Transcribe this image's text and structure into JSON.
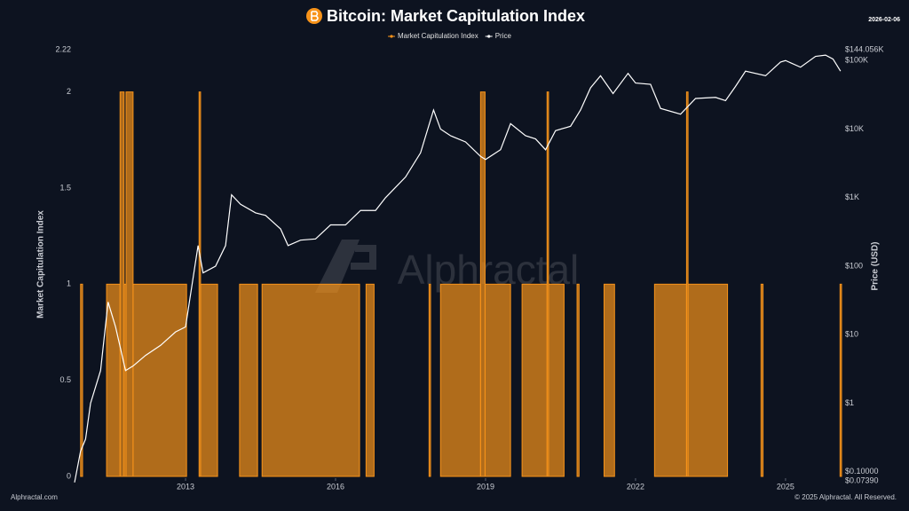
{
  "chart_data": {
    "type": "line",
    "title": "Bitcoin: Market Capitulation Index",
    "date": "2026-02-06",
    "legend": "top",
    "watermark": "Alphractal",
    "footer_left": "Alphractal.com",
    "footer_right": "© 2025 Alphractal. All Reserved.",
    "y_label": "Market Capitulation Index",
    "y2_label": "Price (USD)",
    "y2_scale": "log",
    "xlim": [
      2010.78,
      2026.12
    ],
    "xticks": [
      2013,
      2016,
      2019,
      2022,
      2025
    ],
    "ylim": [
      0,
      2.22
    ],
    "yticks": [
      0,
      0.5,
      1,
      1.5,
      2,
      2.22
    ],
    "y2lim": [
      0.0739,
      144056
    ],
    "y2ticks": [
      {
        "value": 0.0739,
        "label": "$0.07390"
      },
      {
        "value": 0.1,
        "label": "$0.10000"
      },
      {
        "value": 1,
        "label": "$1"
      },
      {
        "value": 10,
        "label": "$10"
      },
      {
        "value": 100,
        "label": "$100"
      },
      {
        "value": 1000,
        "label": "$1K"
      },
      {
        "value": 10000,
        "label": "$10K"
      },
      {
        "value": 100000,
        "label": "$100K"
      },
      {
        "value": 144056,
        "label": "$144.056K"
      }
    ],
    "series": [
      {
        "name": "Market Capitulation Index",
        "color": "#f7931a",
        "type": "step-area",
        "x": [
          2010.78,
          2010.9,
          2010.94,
          2011.42,
          2011.69,
          2011.77,
          2011.81,
          2011.95,
          2013.02,
          2013.27,
          2013.3,
          2013.64,
          2014.08,
          2014.44,
          2014.53,
          2016.48,
          2016.61,
          2016.77,
          2017.87,
          2017.9,
          2018.1,
          2018.9,
          2018.99,
          2019.5,
          2019.73,
          2020.23,
          2020.26,
          2020.57,
          2020.83,
          2020.87,
          2021.37,
          2021.58,
          2022.38,
          2023.02,
          2023.05,
          2023.84,
          2024.51,
          2024.55,
          2026.09
        ],
        "values": [
          0,
          1,
          0,
          1,
          2,
          1,
          2,
          1,
          0,
          2,
          1,
          0,
          1,
          0,
          1,
          0,
          1,
          0,
          1,
          0,
          1,
          2,
          1,
          0,
          1,
          2,
          1,
          0,
          1,
          0,
          1,
          0,
          1,
          2,
          1,
          0,
          1,
          0,
          1
        ]
      },
      {
        "name": "Price",
        "color": "#ffffff",
        "type": "line",
        "axis": "y2",
        "x": [
          2010.78,
          2010.9,
          2011.0,
          2011.1,
          2011.3,
          2011.45,
          2011.6,
          2011.8,
          2011.95,
          2012.2,
          2012.5,
          2012.8,
          2013.0,
          2013.25,
          2013.35,
          2013.6,
          2013.8,
          2013.92,
          2014.1,
          2014.4,
          2014.6,
          2014.9,
          2015.05,
          2015.3,
          2015.6,
          2015.9,
          2016.2,
          2016.5,
          2016.8,
          2017.0,
          2017.4,
          2017.7,
          2017.96,
          2018.1,
          2018.3,
          2018.6,
          2018.9,
          2019.0,
          2019.3,
          2019.5,
          2019.8,
          2020.0,
          2020.2,
          2020.4,
          2020.7,
          2020.9,
          2021.1,
          2021.3,
          2021.55,
          2021.85,
          2022.0,
          2022.3,
          2022.5,
          2022.9,
          2023.2,
          2023.6,
          2023.8,
          2024.0,
          2024.2,
          2024.6,
          2024.9,
          2025.0,
          2025.3,
          2025.6,
          2025.8,
          2025.95,
          2026.1
        ],
        "values": [
          0.07,
          0.2,
          0.3,
          1,
          3,
          30,
          13,
          3,
          3.5,
          5,
          7,
          11,
          13,
          200,
          80,
          100,
          200,
          1100,
          800,
          600,
          550,
          350,
          200,
          240,
          250,
          400,
          400,
          650,
          650,
          1000,
          2000,
          4500,
          19000,
          10000,
          8000,
          6500,
          4000,
          3600,
          5000,
          12000,
          8000,
          7200,
          5000,
          9500,
          11000,
          19000,
          40000,
          60000,
          33000,
          65000,
          47000,
          45000,
          20000,
          16500,
          28000,
          29000,
          26000,
          42000,
          70000,
          60000,
          95000,
          100000,
          80000,
          115000,
          120000,
          105000,
          70000
        ]
      }
    ]
  }
}
